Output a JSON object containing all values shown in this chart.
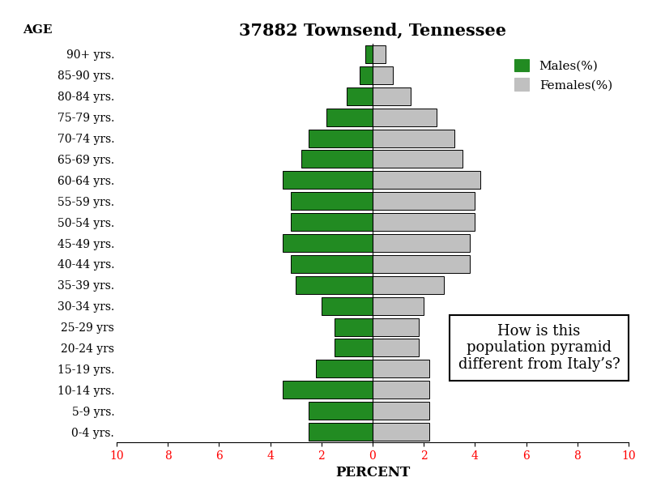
{
  "title": "37882 Townsend, Tennessee",
  "age_labels": [
    "0-4 yrs.",
    "5-9 yrs.",
    "10-14 yrs.",
    "15-19 yrs.",
    "20-24 yrs",
    "25-29 yrs",
    "30-34 yrs.",
    "35-39 yrs.",
    "40-44 yrs.",
    "45-49 yrs.",
    "50-54 yrs.",
    "55-59 yrs.",
    "60-64 yrs.",
    "65-69 yrs.",
    "70-74 yrs.",
    "75-79 yrs.",
    "80-84 yrs.",
    "85-90 yrs.",
    "90+ yrs."
  ],
  "males": [
    2.5,
    2.5,
    3.5,
    2.2,
    1.5,
    1.5,
    2.0,
    3.0,
    3.2,
    3.5,
    3.2,
    3.2,
    3.5,
    2.8,
    2.5,
    1.8,
    1.0,
    0.5,
    0.3
  ],
  "females": [
    2.2,
    2.2,
    2.2,
    2.2,
    1.8,
    1.8,
    2.0,
    2.8,
    3.8,
    3.8,
    4.0,
    4.0,
    4.2,
    3.5,
    3.2,
    2.5,
    1.5,
    0.8,
    0.5
  ],
  "male_color": "#228B22",
  "female_color": "#C0C0C0",
  "bar_edge_color": "#000000",
  "xlabel": "PERCENT",
  "ylabel": "AGE",
  "xlim": [
    -10,
    10
  ],
  "xticks": [
    -10,
    -8,
    -6,
    -4,
    -2,
    0,
    2,
    4,
    6,
    8,
    10
  ],
  "xtick_labels": [
    "10",
    "8",
    "6",
    "4",
    "2",
    "0",
    "2",
    "4",
    "6",
    "8",
    "10"
  ],
  "title_fontsize": 15,
  "label_fontsize": 10,
  "ylabel_fontsize": 11,
  "tick_fontsize": 10,
  "annotation_text": "How is this\npopulation pyramid\ndifferent from Italy’s?",
  "annotation_fontsize": 13,
  "legend_labels": [
    "Males(%)",
    "Females(%)"
  ],
  "background_color": "#ffffff"
}
